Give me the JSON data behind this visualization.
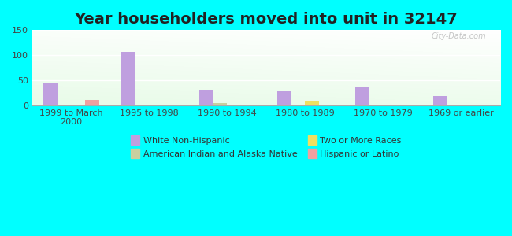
{
  "title": "Year householders moved into unit in 32147",
  "background_color": "#00FFFF",
  "categories": [
    "1999 to March\n2000",
    "1995 to 1998",
    "1990 to 1994",
    "1980 to 1989",
    "1970 to 1979",
    "1969 or earlier"
  ],
  "series": {
    "White Non-Hispanic": {
      "color": "#bf9fdf",
      "values": [
        46,
        106,
        31,
        28,
        36,
        19
      ]
    },
    "American Indian and Alaska Native": {
      "color": "#c8cf9f",
      "values": [
        0,
        0,
        5,
        0,
        0,
        0
      ]
    },
    "Two or More Races": {
      "color": "#f0e060",
      "values": [
        0,
        0,
        0,
        9,
        0,
        0
      ]
    },
    "Hispanic or Latino": {
      "color": "#f0a0a0",
      "values": [
        10,
        0,
        0,
        0,
        0,
        0
      ]
    }
  },
  "ylim": [
    0,
    150
  ],
  "yticks": [
    0,
    50,
    100,
    150
  ],
  "bar_width": 0.18,
  "title_fontsize": 14,
  "tick_fontsize": 8,
  "legend_fontsize": 8,
  "watermark": "City-Data.com"
}
